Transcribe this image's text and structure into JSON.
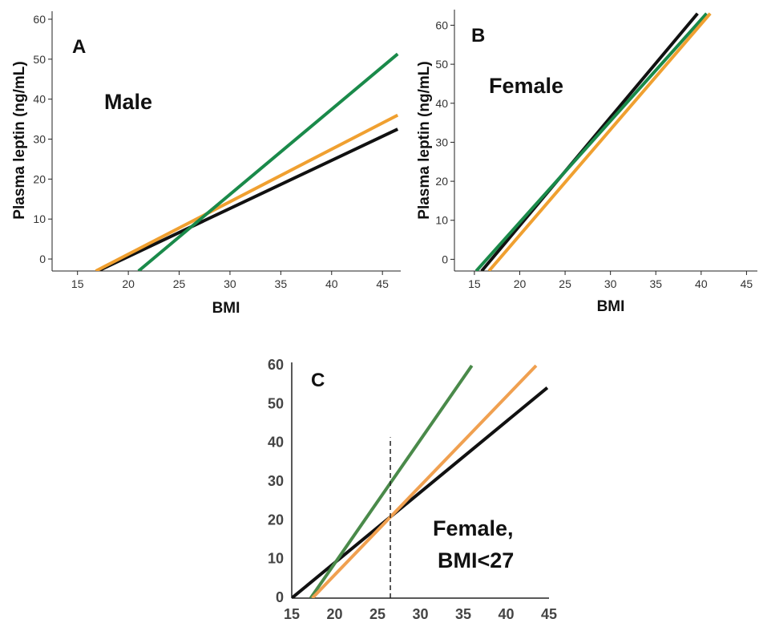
{
  "colors": {
    "black": "#111111",
    "green": "#1a8a4a",
    "orange": "#f0a030",
    "greenC": "#4a8a4a",
    "orangeC": "#f0a050"
  },
  "chart_data": [
    {
      "type": "line",
      "panel": "A",
      "annotation": "Male",
      "xlabel": "BMI",
      "ylabel": "Plasma leptin (ng/mL)",
      "xlim": [
        12.5,
        46.8
      ],
      "ylim": [
        -3,
        62
      ],
      "xticks": [
        15,
        20,
        25,
        30,
        35,
        40,
        45
      ],
      "yticks": [
        0,
        10,
        20,
        30,
        40,
        50,
        60
      ],
      "series": [
        {
          "color": "black",
          "x": [
            17.0,
            46.5
          ],
          "y": [
            -3,
            32.5
          ]
        },
        {
          "color": "orange",
          "x": [
            16.8,
            46.5
          ],
          "y": [
            -3,
            36.0
          ]
        },
        {
          "color": "green",
          "x": [
            21.0,
            46.5
          ],
          "y": [
            -3,
            51.3
          ]
        }
      ]
    },
    {
      "type": "line",
      "panel": "B",
      "annotation": "Female",
      "xlabel": "BMI",
      "ylabel": "Plasma leptin (ng/mL)",
      "xlim": [
        12.8,
        46.2
      ],
      "ylim": [
        -3,
        64
      ],
      "xticks": [
        15,
        20,
        25,
        30,
        35,
        40,
        45
      ],
      "yticks": [
        0,
        10,
        20,
        30,
        40,
        50,
        60
      ],
      "series": [
        {
          "color": "black",
          "x": [
            15.8,
            39.6
          ],
          "y": [
            -3,
            63
          ]
        },
        {
          "color": "green",
          "x": [
            15.2,
            40.6
          ],
          "y": [
            -3,
            63
          ]
        },
        {
          "color": "orange",
          "x": [
            16.6,
            41.0
          ],
          "y": [
            -3,
            63
          ]
        }
      ]
    },
    {
      "type": "line",
      "panel": "C",
      "annotation": [
        "Female,",
        "BMI<27"
      ],
      "xlabel": "",
      "ylabel": "",
      "xlim": [
        15,
        45
      ],
      "ylim": [
        0,
        60
      ],
      "xticks": [
        15,
        20,
        25,
        30,
        35,
        40,
        45
      ],
      "yticks": [
        0,
        10,
        20,
        30,
        40,
        50,
        60
      ],
      "vline": {
        "x": 26.5,
        "y_top": 41.5,
        "style": "dashed"
      },
      "series": [
        {
          "color": "black",
          "x": [
            15.0,
            44.8
          ],
          "y": [
            0,
            54.3
          ]
        },
        {
          "color": "greenC",
          "x": [
            17.2,
            36.0
          ],
          "y": [
            0,
            60
          ]
        },
        {
          "color": "orangeC",
          "x": [
            17.4,
            43.5
          ],
          "y": [
            0,
            60
          ]
        }
      ]
    }
  ]
}
